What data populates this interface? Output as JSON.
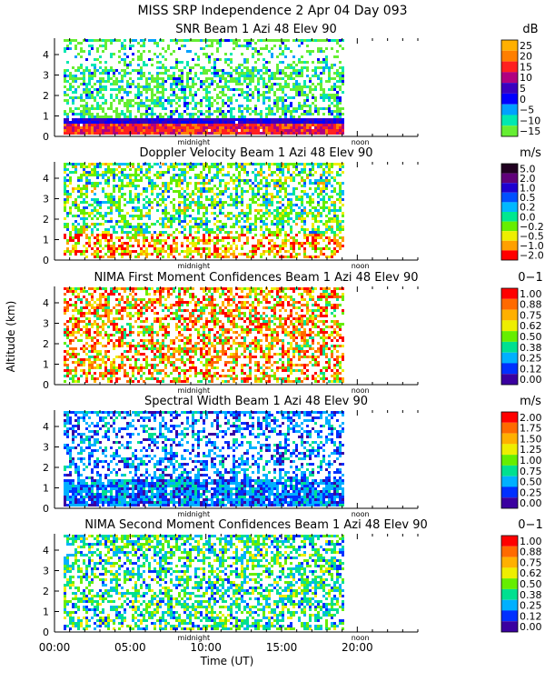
{
  "header": {
    "title": "MISS SRP Independence   2 Apr 04 Day 093"
  },
  "shared": {
    "ylabel": "Altitude (km)",
    "xlabel": "Time (UT)",
    "xticks": [
      "00:00",
      "05:00",
      "10:00",
      "15:00",
      "20:00"
    ],
    "yticks": [
      "0",
      "1",
      "2",
      "3",
      "4"
    ],
    "midnight_label": "midnight",
    "noon_label": "noon"
  },
  "chart_data": [
    {
      "type": "heatmap",
      "title": "SNR Beam 1 Azi  48 Elev 90",
      "unit": "dB",
      "x_range_hours": [
        0,
        24
      ],
      "data_end_hours": 19.0,
      "ylim_km": [
        0,
        4.8
      ],
      "colorbar": {
        "labels": [
          "25",
          "20",
          "15",
          "10",
          "5",
          "0",
          "−5",
          "−10",
          "−15"
        ],
        "colors": [
          "#ffb000",
          "#ff7f00",
          "#ff2020",
          "#b00080",
          "#3a00c0",
          "#0000ff",
          "#00a0ff",
          "#00e8b0",
          "#66ee33"
        ]
      }
    },
    {
      "type": "heatmap",
      "title": "Doppler Velocity Beam 1 Azi  48 Elev 90",
      "unit": "m/s",
      "x_range_hours": [
        0,
        24
      ],
      "data_end_hours": 19.0,
      "ylim_km": [
        0,
        4.8
      ],
      "colorbar": {
        "labels": [
          "5.0",
          "2.0",
          "1.0",
          "0.5",
          "0.2",
          "0.0",
          "−0.2",
          "−0.5",
          "−1.0",
          "−2.0"
        ],
        "colors": [
          "#200020",
          "#60007a",
          "#1e00d0",
          "#0050ff",
          "#00b8ff",
          "#00e890",
          "#66ee00",
          "#eeee00",
          "#ffa000",
          "#ff0000"
        ]
      }
    },
    {
      "type": "heatmap",
      "title": "NIMA First Moment Confidences Beam 1 Azi  48 Elev 90",
      "unit": "0−1",
      "x_range_hours": [
        0,
        24
      ],
      "data_end_hours": 19.0,
      "ylim_km": [
        0,
        4.8
      ],
      "colorbar": {
        "labels": [
          "1.00",
          "0.88",
          "0.75",
          "0.62",
          "0.50",
          "0.38",
          "0.25",
          "0.12",
          "0.00"
        ],
        "colors": [
          "#ff0000",
          "#ff6a00",
          "#ffb000",
          "#eeee00",
          "#66ee00",
          "#00e090",
          "#00b0ff",
          "#0030ff",
          "#3a00a0"
        ]
      }
    },
    {
      "type": "heatmap",
      "title": "Spectral Width Beam 1 Azi  48 Elev 90",
      "unit": "m/s",
      "x_range_hours": [
        0,
        24
      ],
      "data_end_hours": 19.0,
      "ylim_km": [
        0,
        4.8
      ],
      "colorbar": {
        "labels": [
          "2.00",
          "1.75",
          "1.50",
          "1.25",
          "1.00",
          "0.75",
          "0.50",
          "0.25",
          "0.00"
        ],
        "colors": [
          "#ff0000",
          "#ff6a00",
          "#ffb000",
          "#eeee00",
          "#66ee00",
          "#00e090",
          "#00b0ff",
          "#0030ff",
          "#3a00a0"
        ]
      }
    },
    {
      "type": "heatmap",
      "title": "NIMA Second Moment Confidences Beam 1 Azi  48 Elev 90",
      "unit": "0−1",
      "x_range_hours": [
        0,
        24
      ],
      "data_end_hours": 19.0,
      "ylim_km": [
        0,
        4.8
      ],
      "colorbar": {
        "labels": [
          "1.00",
          "0.88",
          "0.75",
          "0.62",
          "0.50",
          "0.38",
          "0.25",
          "0.12",
          "0.00"
        ],
        "colors": [
          "#ff0000",
          "#ff6a00",
          "#ffb000",
          "#eeee00",
          "#66ee00",
          "#00e090",
          "#00b0ff",
          "#0030ff",
          "#3a00a0"
        ]
      }
    }
  ]
}
